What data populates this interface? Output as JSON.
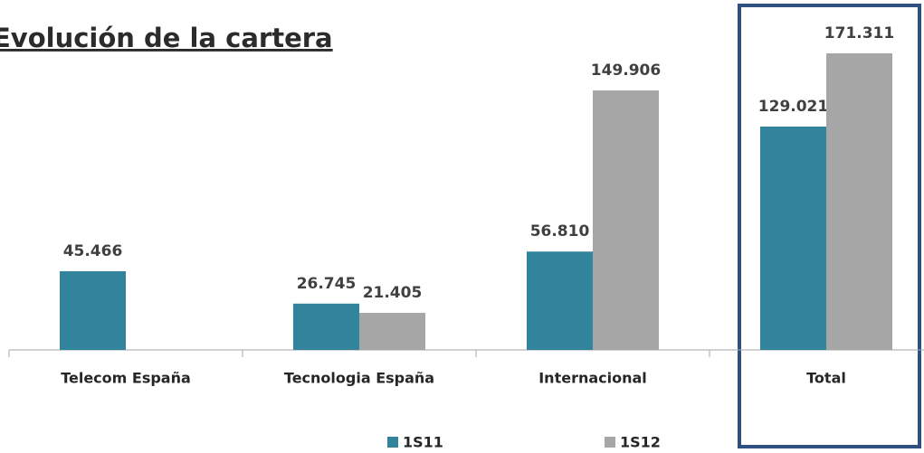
{
  "chart_data": {
    "type": "bar",
    "title": "Evolución de la cartera",
    "categories": [
      "Telecom España",
      "Tecnologia España",
      "Internacional",
      "Total"
    ],
    "series": [
      {
        "name": "1S11",
        "color": "#31849b",
        "values": [
          45466,
          26745,
          56810,
          129021
        ],
        "value_labels": [
          "45.466",
          "26.745",
          "56.810",
          "129.021"
        ]
      },
      {
        "name": "1S12",
        "color": "#a6a6a6",
        "values": [
          null,
          21405,
          149906,
          171311
        ],
        "value_labels": [
          null,
          "21.405",
          "149.906",
          "171.311"
        ]
      }
    ]
  }
}
